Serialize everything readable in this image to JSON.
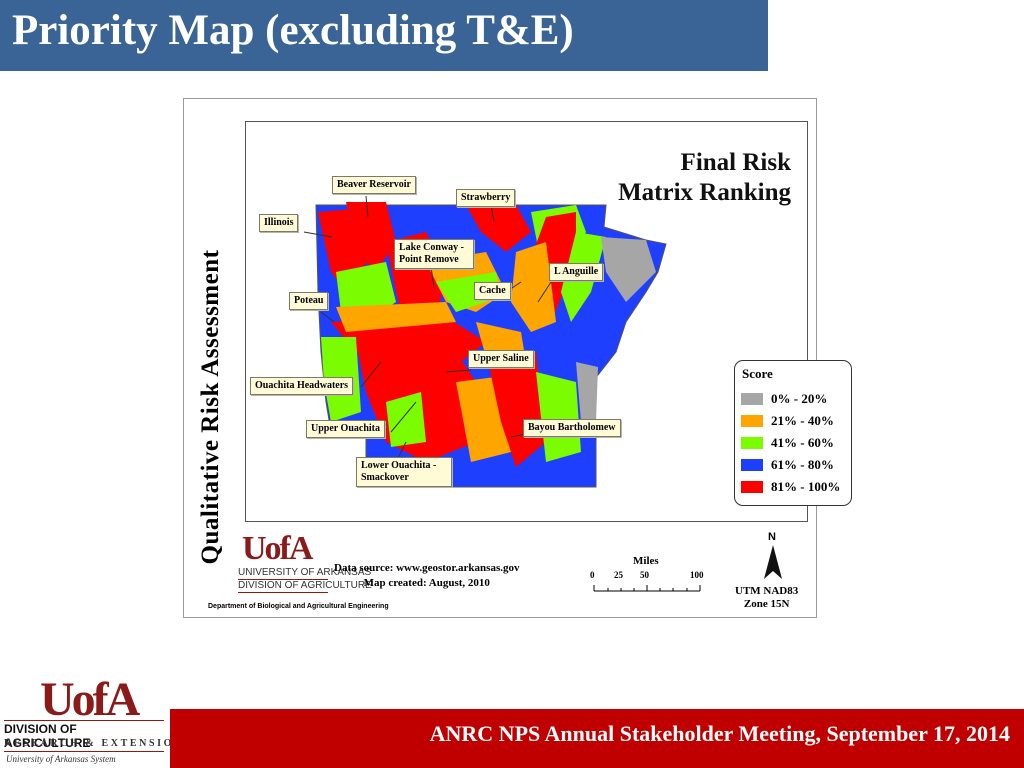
{
  "slide": {
    "title": "Priority Map (excluding T&E)",
    "footer": "ANRC NPS Annual Stakeholder Meeting, September 17, 2014",
    "footer_logo": {
      "mark": "UofA",
      "division": "DIVISION OF AGRICULTURE",
      "research": "RESEARCH & EXTENSION",
      "system": "University of Arkansas System"
    }
  },
  "map": {
    "vertical_title": "Qualitative Risk Assessment",
    "title_line1": "Final Risk",
    "title_line2": "Matrix Ranking",
    "callouts": [
      {
        "id": "beaver",
        "label": "Beaver Reservoir"
      },
      {
        "id": "strawberry",
        "label": "Strawberry"
      },
      {
        "id": "illinois",
        "label": "Illinois"
      },
      {
        "id": "lakeconway",
        "label": "Lake Conway - Point Remove"
      },
      {
        "id": "languille",
        "label": "L Anguille"
      },
      {
        "id": "cache",
        "label": "Cache"
      },
      {
        "id": "poteau",
        "label": "Poteau"
      },
      {
        "id": "uppersaline",
        "label": "Upper Saline"
      },
      {
        "id": "ouachitahw",
        "label": "Ouachita Headwaters"
      },
      {
        "id": "upperouachita",
        "label": "Upper Ouachita"
      },
      {
        "id": "bayoubart",
        "label": "Bayou Bartholomew"
      },
      {
        "id": "lowerouachita",
        "label": "Lower Ouachita - Smackover"
      }
    ],
    "legend": {
      "title": "Score",
      "items": [
        {
          "label": "0% - 20%",
          "color": "#a6a6a6"
        },
        {
          "label": "21% - 40%",
          "color": "#ffa500"
        },
        {
          "label": "41% - 60%",
          "color": "#7cfc00"
        },
        {
          "label": "61% - 80%",
          "color": "#1f3fff"
        },
        {
          "label": "81% - 100%",
          "color": "#ff0000"
        }
      ]
    },
    "logo": {
      "mark": "UofA",
      "line1": "UNIVERSITY OF ARKANSAS",
      "line2": "DIVISION OF AGRICULTURE"
    },
    "department": "Department of Biological and Agricultural Engineering",
    "data_source": "Data source: www.geostor.arkansas.gov",
    "map_created": "Map created: August, 2010",
    "scale": {
      "title": "Miles",
      "ticks": [
        "0",
        "25",
        "50",
        "100"
      ]
    },
    "north": "N",
    "projection_line1": "UTM NAD83",
    "projection_line2": "Zone 15N"
  }
}
